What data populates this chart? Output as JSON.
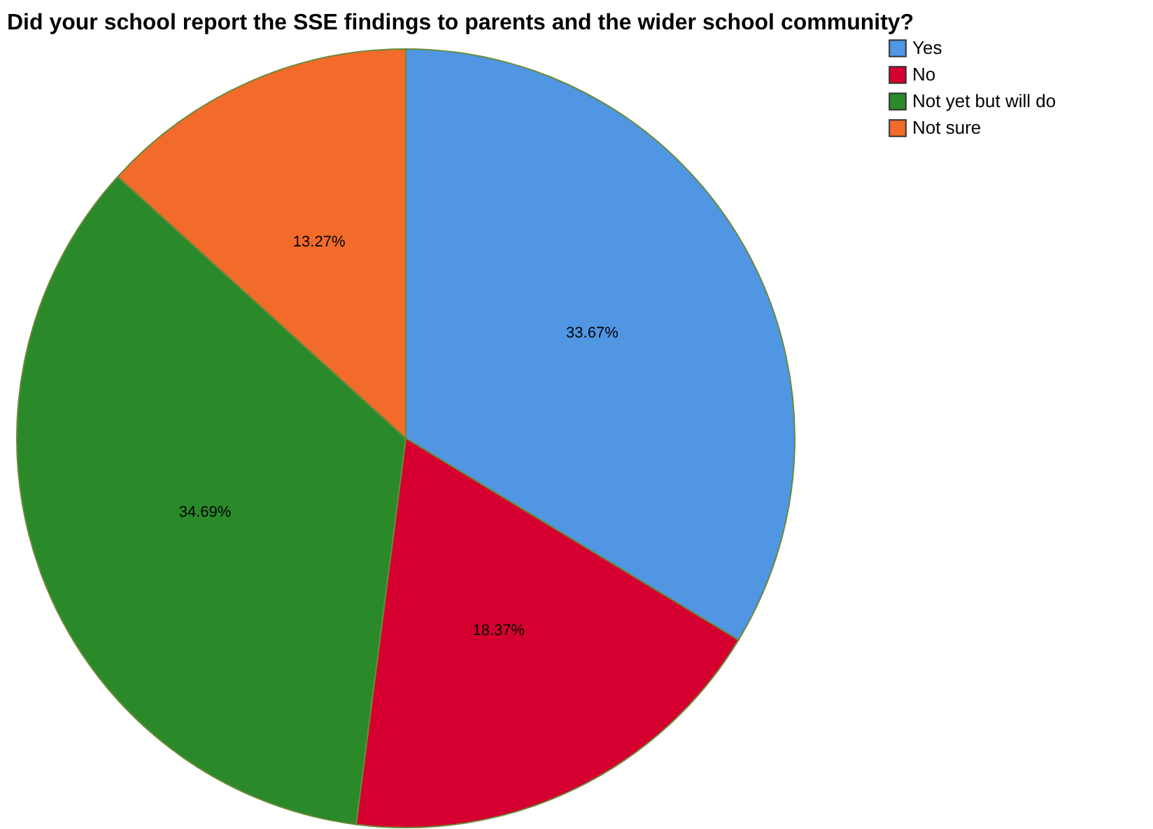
{
  "chart_data": {
    "type": "pie",
    "title": "Did your school report the SSE findings to parents and the wider school community?",
    "categories": [
      "Yes",
      "No",
      "Not yet but will do",
      "Not sure"
    ],
    "values": [
      33.67,
      18.37,
      34.69,
      13.27
    ],
    "value_labels": [
      "33.67%",
      "18.37%",
      "34.69%",
      "13.27%"
    ],
    "colors": [
      "#5096e3",
      "#d5002f",
      "#2a8a2a",
      "#f26b2b"
    ],
    "legend": "top right"
  }
}
